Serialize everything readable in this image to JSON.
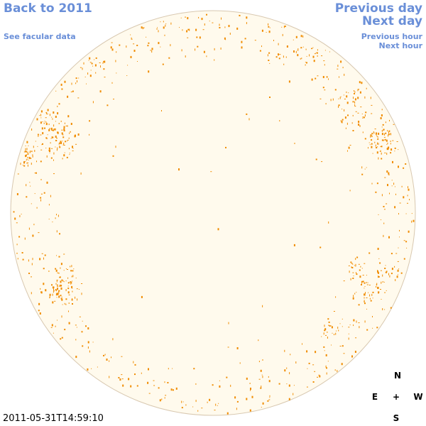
{
  "nav": {
    "back_year": "Back to 2011",
    "facular": "See facular data",
    "prev_day": "Previous day",
    "next_day": "Next day",
    "prev_hour": "Previous hour",
    "next_hour": "Next hour"
  },
  "compass": {
    "north": "N",
    "south": "S",
    "east": "E",
    "west": "W",
    "center": "+"
  },
  "timestamp": "2011-05-31T14:59:10",
  "colors": {
    "disk_fill": "#fffaed",
    "disk_stroke": "#d8c8b0",
    "speckle": "#f08c00",
    "link": "#6a8fd8"
  }
}
